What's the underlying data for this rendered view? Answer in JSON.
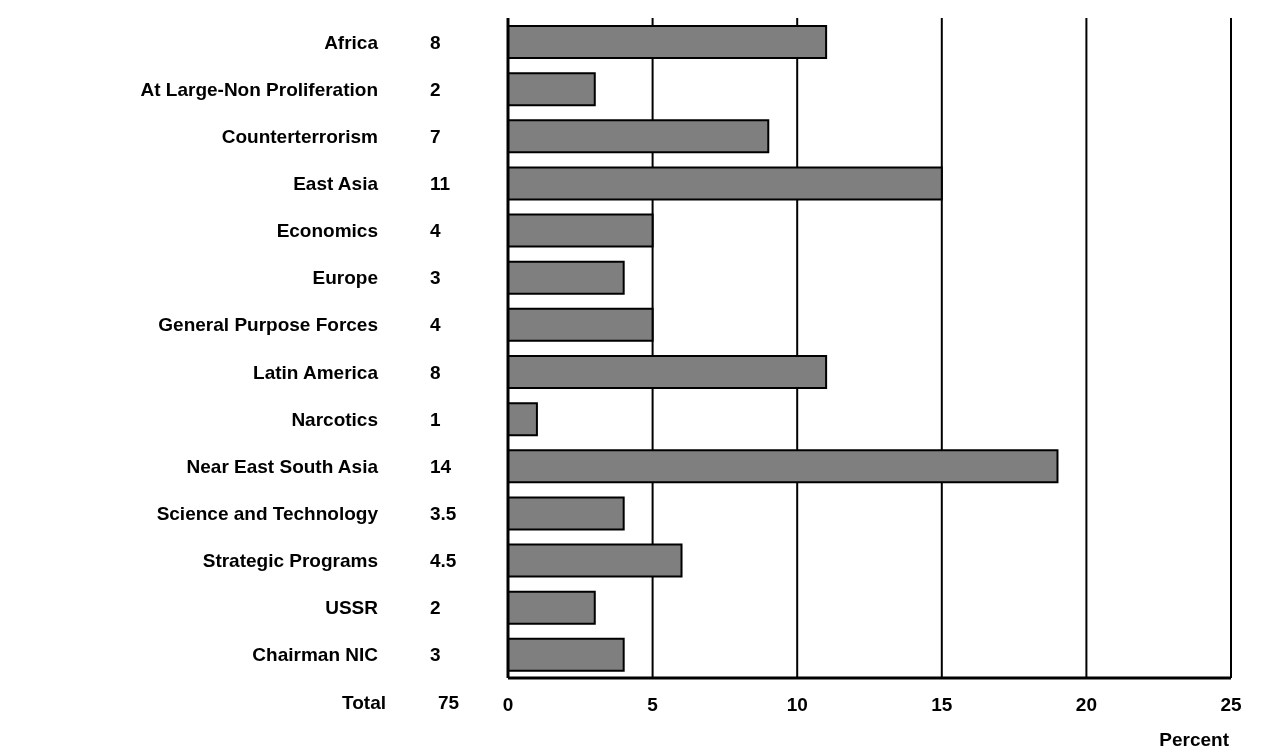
{
  "chart_data": {
    "type": "bar",
    "orientation": "horizontal",
    "categories": [
      "Africa",
      "At Large-Non Proliferation",
      "Counterterrorism",
      "East Asia",
      "Economics",
      "Europe",
      "General Purpose Forces",
      "Latin America",
      "Narcotics",
      "Near East South Asia",
      "Science and Technology",
      "Strategic Programs",
      "USSR",
      "Chairman NIC"
    ],
    "values": [
      11,
      3,
      9,
      15,
      5,
      4,
      5,
      11,
      1,
      19,
      4,
      6,
      3,
      4
    ],
    "color": "#7f7f7f",
    "xlim": [
      0,
      25
    ],
    "xticks": [
      0,
      5,
      10,
      15,
      20,
      25
    ],
    "xlabel": "Percent",
    "grid": "x",
    "annotations": [
      "8",
      "2",
      "7",
      "11",
      "4",
      "3",
      "4",
      "8",
      "1",
      "14",
      "3.5",
      "4.5",
      "2",
      "3",
      "Total",
      "75"
    ]
  }
}
